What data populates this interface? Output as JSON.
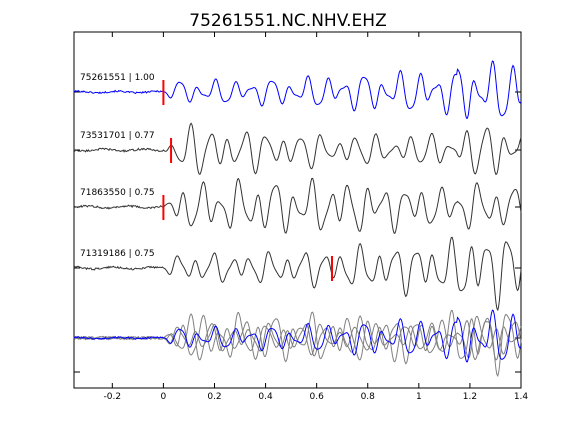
{
  "chart_data": {
    "type": "line",
    "title": "75261551.NC.NHV.EHZ",
    "xlim": [
      -0.35,
      1.4
    ],
    "xticks": [
      -0.2,
      0,
      0.2,
      0.4,
      0.6,
      0.8,
      1,
      1.2,
      1.4
    ],
    "xtick_labels": [
      "-0.2",
      "0",
      "0.2",
      "0.4",
      "0.6",
      "0.8",
      "1",
      "1.2",
      "1.4"
    ],
    "xlabel": "",
    "ylabel": "",
    "grid": false,
    "traces": [
      {
        "label": "75261551 | 1.00",
        "color": "#0000ff",
        "pick_time": 0.0,
        "pick_color": "#ff0000"
      },
      {
        "label": "73531701 | 0.77",
        "color": "#333333",
        "pick_time": 0.03,
        "pick_color": "#ff0000"
      },
      {
        "label": "71863550 | 0.75",
        "color": "#333333",
        "pick_time": 0.0,
        "pick_color": "#ff0000"
      },
      {
        "label": "71319186 | 0.75",
        "color": "#333333",
        "pick_time": 0.66,
        "pick_color": "#ff0000"
      }
    ],
    "stack": {
      "colors": [
        "#0000ff",
        "#808080"
      ]
    }
  }
}
